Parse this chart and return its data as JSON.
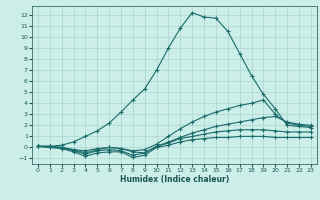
{
  "xlabel": "Humidex (Indice chaleur)",
  "bg_color": "#cceee8",
  "grid_color": "#aad4cc",
  "line_color": "#1a6b6b",
  "xlim": [
    -0.5,
    23.5
  ],
  "ylim": [
    -1.5,
    12.8
  ],
  "xticks": [
    0,
    1,
    2,
    3,
    4,
    5,
    6,
    7,
    8,
    9,
    10,
    11,
    12,
    13,
    14,
    15,
    16,
    17,
    18,
    19,
    20,
    21,
    22,
    23
  ],
  "yticks": [
    -1,
    0,
    1,
    2,
    3,
    4,
    5,
    6,
    7,
    8,
    9,
    10,
    11,
    12
  ],
  "series": [
    {
      "x": [
        0,
        1,
        2,
        3,
        4,
        5,
        6,
        7,
        8,
        9,
        10,
        11,
        12,
        13,
        14,
        15,
        16,
        17,
        18,
        19,
        20,
        21,
        22,
        23
      ],
      "y": [
        0.1,
        0.1,
        0.2,
        0.5,
        1.0,
        1.5,
        2.2,
        3.2,
        4.3,
        5.3,
        7.0,
        9.0,
        10.8,
        12.2,
        11.8,
        11.7,
        10.5,
        8.5,
        6.5,
        4.8,
        3.5,
        2.0,
        1.9,
        1.8
      ]
    },
    {
      "x": [
        0,
        1,
        2,
        3,
        4,
        5,
        6,
        7,
        8,
        9,
        10,
        11,
        12,
        13,
        14,
        15,
        16,
        17,
        18,
        19,
        20,
        21,
        22,
        23
      ],
      "y": [
        0.1,
        0.1,
        0.0,
        -0.2,
        -0.5,
        -0.2,
        0.0,
        -0.1,
        -0.3,
        -0.2,
        0.3,
        1.0,
        1.7,
        2.3,
        2.8,
        3.2,
        3.5,
        3.8,
        4.0,
        4.3,
        3.0,
        2.2,
        2.0,
        1.9
      ]
    },
    {
      "x": [
        0,
        1,
        2,
        3,
        4,
        5,
        6,
        7,
        8,
        9,
        10,
        11,
        12,
        13,
        14,
        15,
        16,
        17,
        18,
        19,
        20,
        21,
        22,
        23
      ],
      "y": [
        0.1,
        0.1,
        0.0,
        -0.2,
        -0.3,
        -0.1,
        0.0,
        -0.1,
        -0.4,
        -0.5,
        0.1,
        0.5,
        0.9,
        1.3,
        1.6,
        1.9,
        2.1,
        2.3,
        2.5,
        2.7,
        2.8,
        2.3,
        2.1,
        2.0
      ]
    },
    {
      "x": [
        0,
        1,
        2,
        3,
        4,
        5,
        6,
        7,
        8,
        9,
        10,
        11,
        12,
        13,
        14,
        15,
        16,
        17,
        18,
        19,
        20,
        21,
        22,
        23
      ],
      "y": [
        0.1,
        0.0,
        -0.05,
        -0.3,
        -0.6,
        -0.3,
        -0.2,
        -0.3,
        -0.7,
        -0.5,
        0.1,
        0.4,
        0.8,
        1.0,
        1.2,
        1.4,
        1.5,
        1.6,
        1.6,
        1.6,
        1.5,
        1.4,
        1.4,
        1.4
      ]
    },
    {
      "x": [
        0,
        1,
        2,
        3,
        4,
        5,
        6,
        7,
        8,
        9,
        10,
        11,
        12,
        13,
        14,
        15,
        16,
        17,
        18,
        19,
        20,
        21,
        22,
        23
      ],
      "y": [
        0.1,
        0.0,
        -0.1,
        -0.4,
        -0.8,
        -0.5,
        -0.4,
        -0.4,
        -0.9,
        -0.7,
        0.0,
        0.2,
        0.5,
        0.7,
        0.8,
        0.9,
        0.9,
        1.0,
        1.0,
        1.0,
        0.9,
        0.9,
        0.9,
        0.9
      ]
    }
  ]
}
